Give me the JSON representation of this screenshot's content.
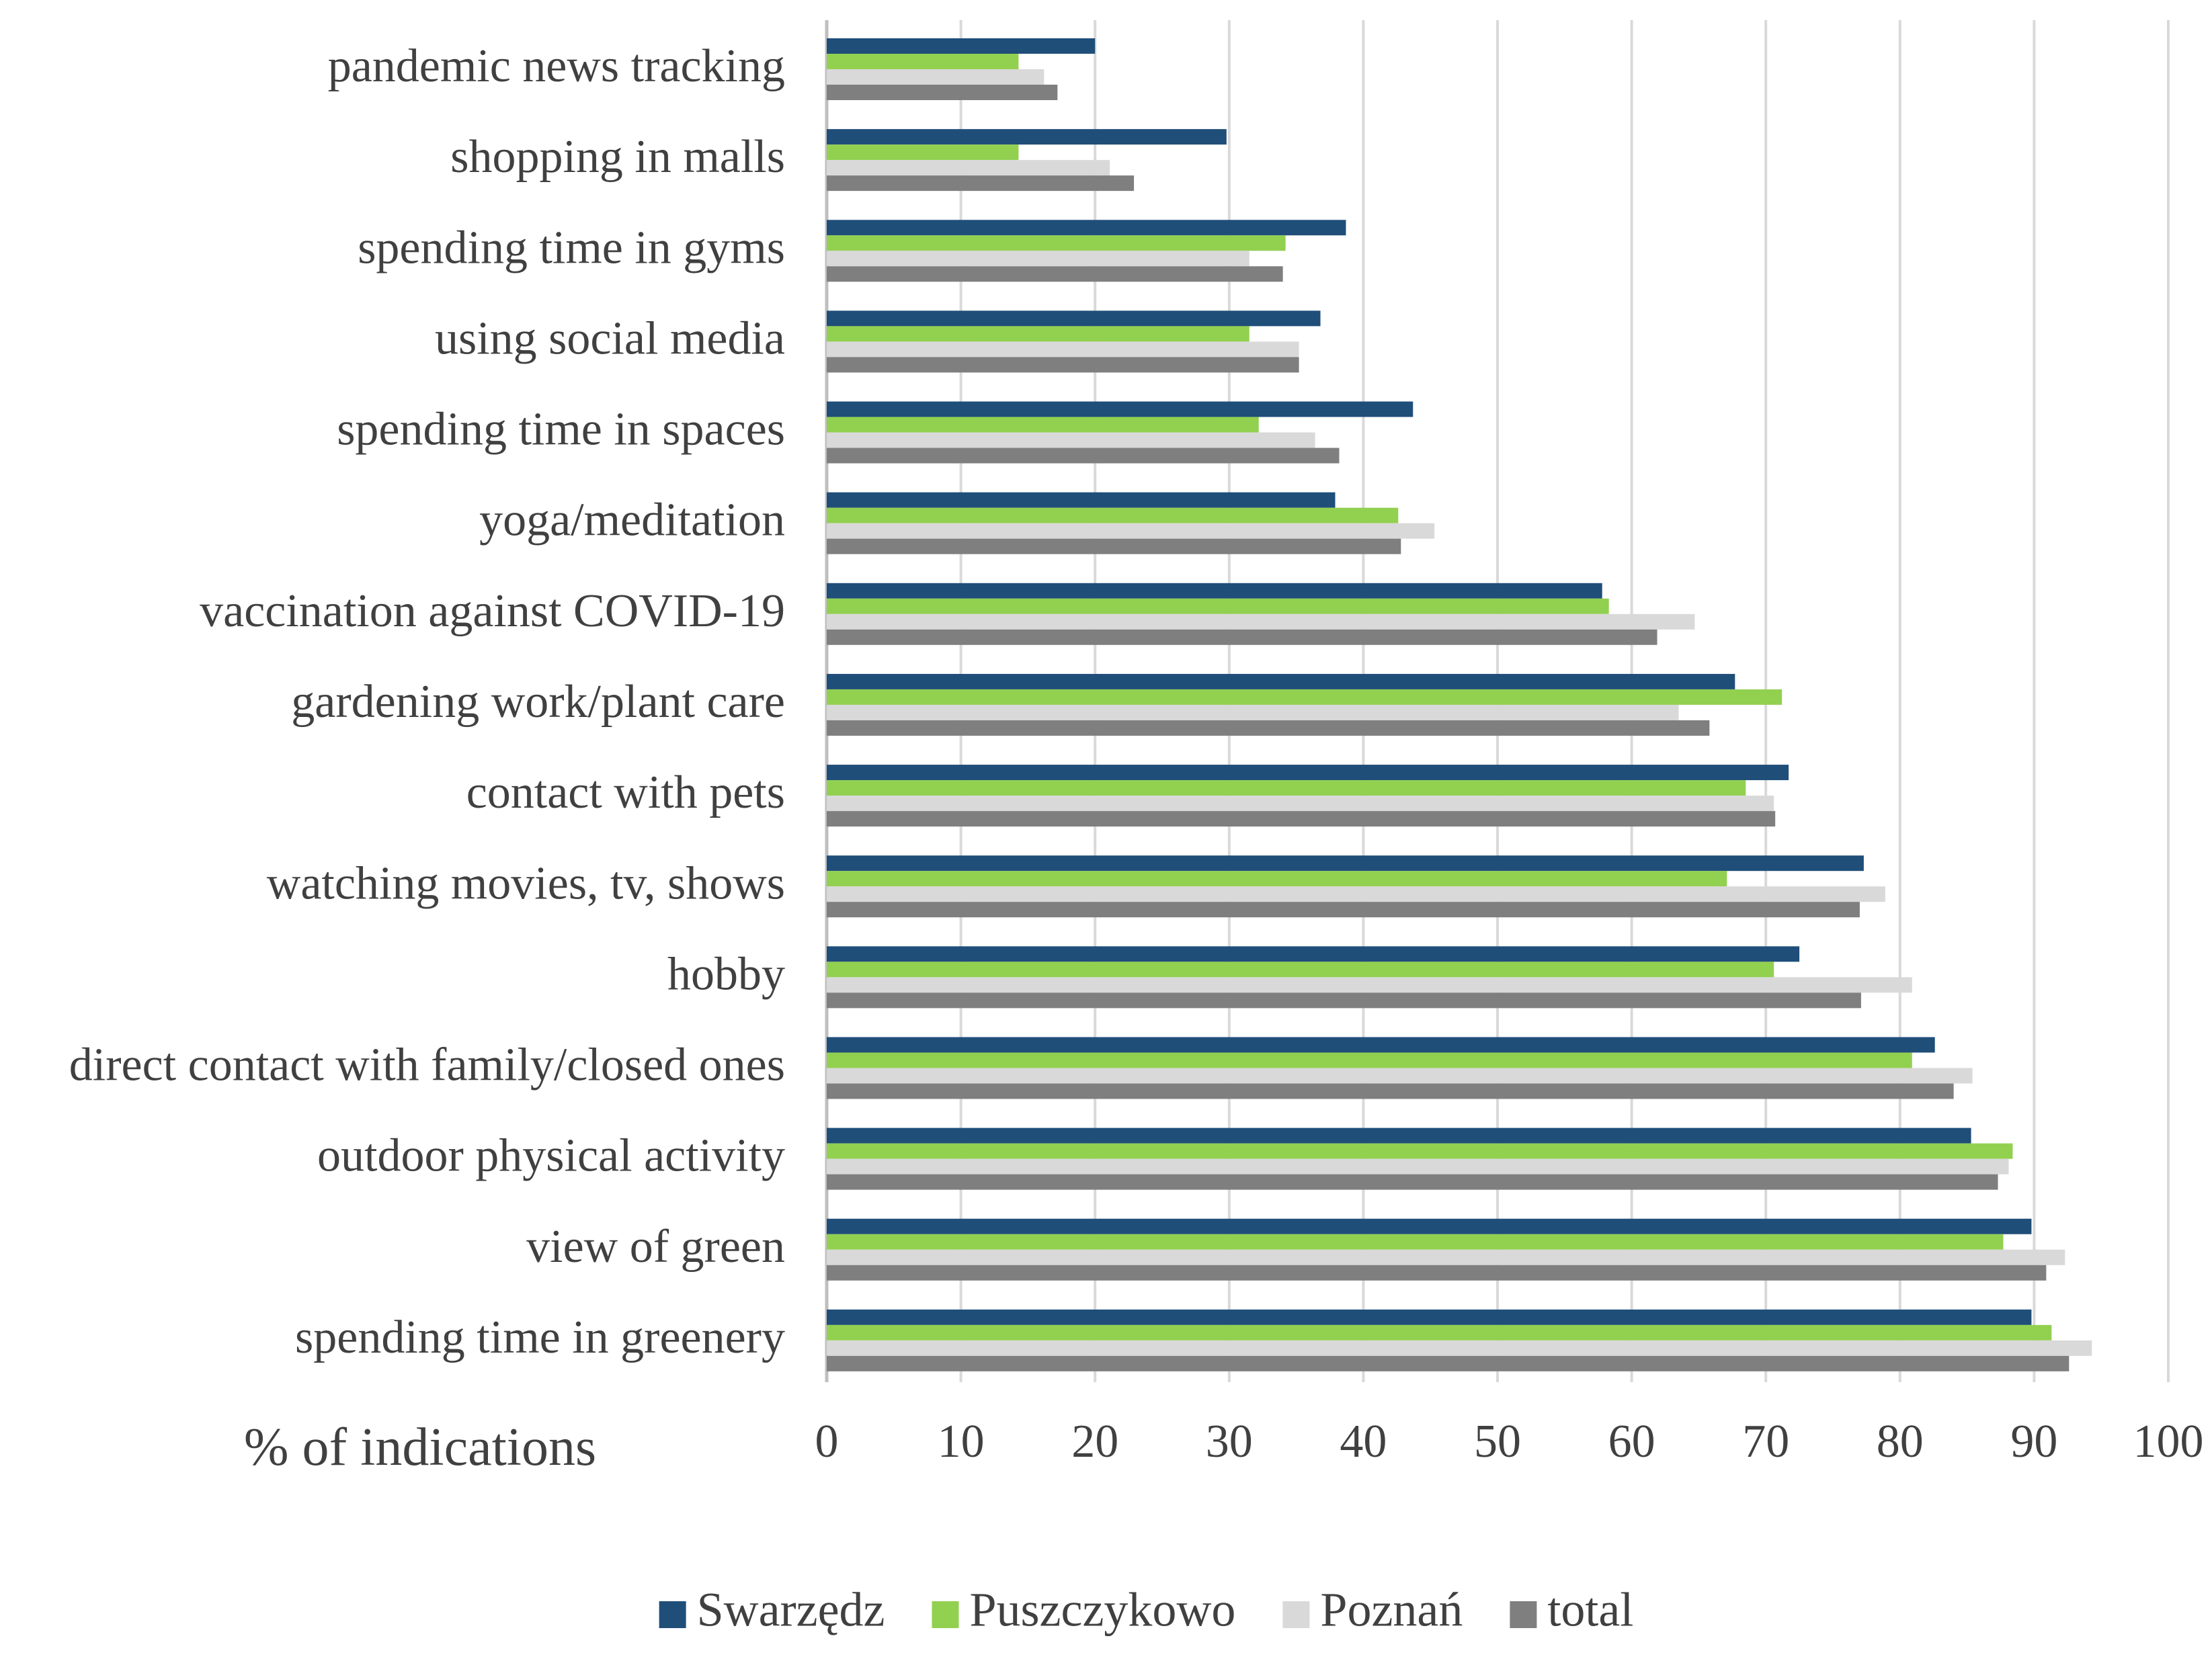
{
  "chart_data": {
    "type": "bar",
    "orientation": "horizontal",
    "title": "",
    "xlabel": "% of indications",
    "ylabel": "",
    "xlim": [
      0,
      100
    ],
    "xticks": [
      "0",
      "10",
      "20",
      "30",
      "40",
      "50",
      "60",
      "70",
      "80",
      "90",
      "100"
    ],
    "grid": "vertical",
    "legend_position": "bottom",
    "categories": [
      "pandemic news tracking",
      "shopping in malls",
      "spending time in gyms",
      "using social media",
      "spending time in spaces",
      "yoga/meditation",
      "vaccination against COVID-19",
      "gardening work/plant care",
      "contact with pets",
      "watching movies, tv, shows",
      "hobby",
      "direct contact with family/closed ones",
      "outdoor physical activity",
      "view of green",
      "spending time in greenery"
    ],
    "series": [
      {
        "name": "Swarzędz",
        "color": "#1f4e79",
        "values": [
          20,
          29.8,
          38.7,
          36.8,
          43.7,
          37.9,
          57.8,
          67.7,
          71.7,
          77.3,
          72.5,
          82.6,
          85.3,
          89.8,
          89.8
        ]
      },
      {
        "name": "Puszczykowo",
        "color": "#92d050",
        "values": [
          14.3,
          14.3,
          34.2,
          31.5,
          32.2,
          42.6,
          58.3,
          71.2,
          68.5,
          67.1,
          70.6,
          80.9,
          88.4,
          87.7,
          91.3
        ]
      },
      {
        "name": "Poznań",
        "color": "#d9d9d9",
        "values": [
          16.2,
          21.1,
          31.5,
          35.2,
          36.4,
          45.3,
          64.7,
          63.5,
          70.6,
          78.9,
          80.9,
          85.4,
          88.1,
          92.3,
          94.3
        ]
      },
      {
        "name": "total",
        "color": "#7f7f7f",
        "values": [
          17.2,
          22.9,
          34.0,
          35.2,
          38.2,
          42.8,
          61.9,
          65.8,
          70.7,
          77.0,
          77.1,
          84.0,
          87.3,
          90.9,
          92.6
        ]
      }
    ]
  }
}
